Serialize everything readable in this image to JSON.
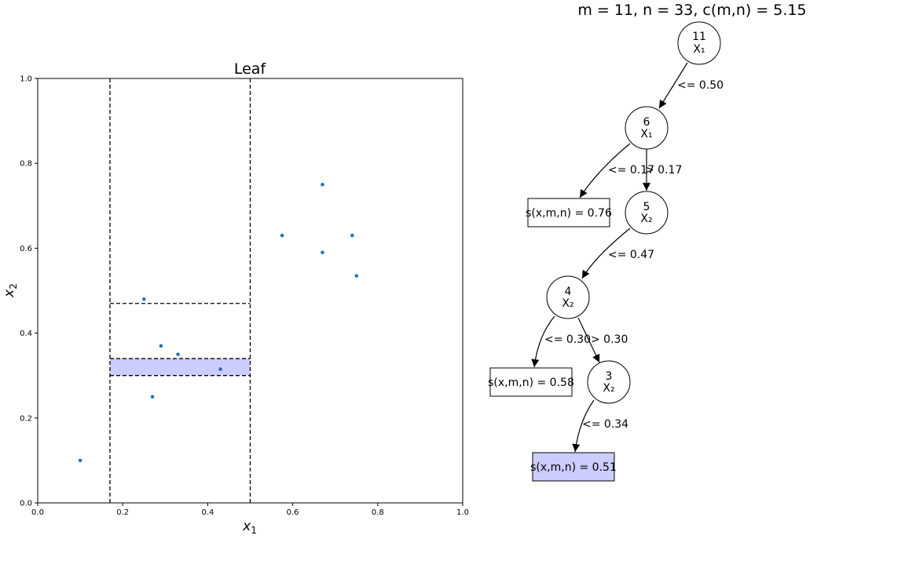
{
  "header": {
    "summary": "m = 11, n = 33, c(m,n) = 5.15"
  },
  "chart_data": {
    "type": "scatter",
    "title": "Leaf",
    "xlabel": "x",
    "xlabel_sub": "1",
    "ylabel": "x",
    "ylabel_sub": "2",
    "xlim": [
      0,
      1
    ],
    "ylim": [
      0,
      1
    ],
    "xticks": [
      "0.0",
      "0.2",
      "0.4",
      "0.6",
      "0.8",
      "1.0"
    ],
    "yticks": [
      "0.0",
      "0.2",
      "0.4",
      "0.6",
      "0.8",
      "1.0"
    ],
    "grid": false,
    "point_color": "#1f77b4",
    "highlight_color": "#ccccff",
    "points": [
      {
        "x": 0.1,
        "y": 0.1
      },
      {
        "x": 0.25,
        "y": 0.48
      },
      {
        "x": 0.29,
        "y": 0.37
      },
      {
        "x": 0.33,
        "y": 0.35
      },
      {
        "x": 0.43,
        "y": 0.315
      },
      {
        "x": 0.27,
        "y": 0.25
      },
      {
        "x": 0.575,
        "y": 0.63
      },
      {
        "x": 0.67,
        "y": 0.75
      },
      {
        "x": 0.67,
        "y": 0.59
      },
      {
        "x": 0.74,
        "y": 0.63
      },
      {
        "x": 0.75,
        "y": 0.535
      }
    ],
    "split_lines": [
      {
        "axis": "x",
        "value": 0.17,
        "from": 0,
        "to": 1
      },
      {
        "axis": "x",
        "value": 0.5,
        "from": 0,
        "to": 1
      },
      {
        "axis": "y",
        "value": 0.47,
        "from": 0.17,
        "to": 0.5
      },
      {
        "axis": "y",
        "value": 0.3,
        "from": 0.17,
        "to": 0.5
      },
      {
        "axis": "y",
        "value": 0.34,
        "from": 0.17,
        "to": 0.5
      }
    ],
    "highlight_region": {
      "x0": 0.17,
      "x1": 0.5,
      "y0": 0.3,
      "y1": 0.34
    }
  },
  "tree": {
    "nodes": [
      {
        "id": "n11",
        "count": "11",
        "feature": "X₁"
      },
      {
        "id": "n6",
        "count": "6",
        "feature": "X₁"
      },
      {
        "id": "n5",
        "count": "5",
        "feature": "X₂"
      },
      {
        "id": "n4",
        "count": "4",
        "feature": "X₂"
      },
      {
        "id": "n3",
        "count": "3",
        "feature": "X₂"
      }
    ],
    "leaves": [
      {
        "id": "leaf1",
        "label": "s(x,m,n) = 0.76",
        "highlight": false
      },
      {
        "id": "leaf2",
        "label": "s(x,m,n) = 0.58",
        "highlight": false
      },
      {
        "id": "leaf3",
        "label": "s(x,m,n) = 0.51",
        "highlight": true
      }
    ],
    "edges": [
      {
        "from": "n11",
        "to": "n6",
        "label": "<= 0.50"
      },
      {
        "from": "n6",
        "to": "leaf1",
        "label": "<= 0.17"
      },
      {
        "from": "n6",
        "to": "n5",
        "label": "> 0.17"
      },
      {
        "from": "n5",
        "to": "n4",
        "label": "<= 0.47"
      },
      {
        "from": "n4",
        "to": "leaf2",
        "label": "<= 0.30"
      },
      {
        "from": "n4",
        "to": "n3",
        "label": "> 0.30"
      },
      {
        "from": "n3",
        "to": "leaf3",
        "label": "<= 0.34"
      }
    ]
  }
}
